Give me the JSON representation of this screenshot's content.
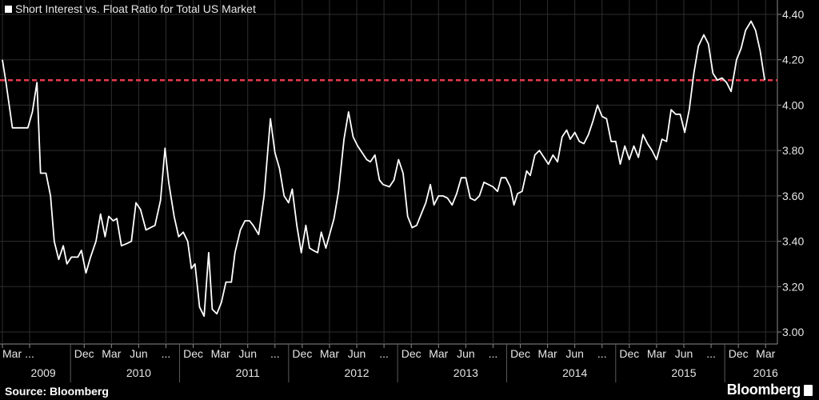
{
  "legend": {
    "label": "Short Interest vs. Float Ratio for Total US Market"
  },
  "source": "Source: Bloomberg",
  "brand": "Bloomberg",
  "chart_data": {
    "type": "line",
    "title": "",
    "xlabel": "",
    "ylabel": "",
    "ylim": [
      3.0,
      4.4
    ],
    "yticks": [
      "3.00",
      "3.20",
      "3.40",
      "3.60",
      "3.80",
      "4.00",
      "4.20",
      "4.40"
    ],
    "grid": true,
    "y_axis_side": "right",
    "reference_line": {
      "value": 4.11,
      "color": "#e8394d",
      "style": "dashed"
    },
    "x_month_labels": [
      {
        "t": 0,
        "label": "Mar"
      },
      {
        "t": 3,
        "label": "..."
      },
      {
        "t": 9,
        "label": "Dec"
      },
      {
        "t": 12,
        "label": "Mar"
      },
      {
        "t": 15,
        "label": "Jun"
      },
      {
        "t": 18,
        "label": "..."
      },
      {
        "t": 21,
        "label": "Dec"
      },
      {
        "t": 24,
        "label": "Mar"
      },
      {
        "t": 27,
        "label": "Jun"
      },
      {
        "t": 30,
        "label": "..."
      },
      {
        "t": 33,
        "label": "Dec"
      },
      {
        "t": 36,
        "label": "Mar"
      },
      {
        "t": 39,
        "label": "Jun"
      },
      {
        "t": 42,
        "label": "..."
      },
      {
        "t": 45,
        "label": "Dec"
      },
      {
        "t": 48,
        "label": "Mar"
      },
      {
        "t": 51,
        "label": "Jun"
      },
      {
        "t": 54,
        "label": "..."
      },
      {
        "t": 57,
        "label": "Dec"
      },
      {
        "t": 60,
        "label": "Mar"
      },
      {
        "t": 63,
        "label": "Jun"
      },
      {
        "t": 66,
        "label": "..."
      },
      {
        "t": 69,
        "label": "Dec"
      },
      {
        "t": 72,
        "label": "Mar"
      },
      {
        "t": 75,
        "label": "Jun"
      },
      {
        "t": 78,
        "label": "..."
      },
      {
        "t": 81,
        "label": "Dec"
      },
      {
        "t": 84,
        "label": "Mar"
      }
    ],
    "x_year_labels": [
      {
        "t": 4.5,
        "label": "2009"
      },
      {
        "t": 15,
        "label": "2010"
      },
      {
        "t": 27,
        "label": "2011"
      },
      {
        "t": 39,
        "label": "2012"
      },
      {
        "t": 51,
        "label": "2013"
      },
      {
        "t": 63,
        "label": "2014"
      },
      {
        "t": 75,
        "label": "2015"
      },
      {
        "t": 84,
        "label": "2016"
      }
    ],
    "series": [
      {
        "color": "#ffffff",
        "points": [
          [
            0.0,
            4.2
          ],
          [
            0.4,
            4.1
          ],
          [
            1.1,
            3.9
          ],
          [
            2.8,
            3.9
          ],
          [
            3.3,
            3.97
          ],
          [
            3.8,
            4.1
          ],
          [
            4.2,
            3.7
          ],
          [
            4.8,
            3.7
          ],
          [
            5.3,
            3.6
          ],
          [
            5.7,
            3.4
          ],
          [
            6.2,
            3.32
          ],
          [
            6.7,
            3.38
          ],
          [
            7.1,
            3.3
          ],
          [
            7.6,
            3.33
          ],
          [
            8.3,
            3.33
          ],
          [
            8.7,
            3.36
          ],
          [
            9.2,
            3.26
          ],
          [
            9.7,
            3.33
          ],
          [
            10.3,
            3.4
          ],
          [
            10.8,
            3.52
          ],
          [
            11.3,
            3.42
          ],
          [
            11.7,
            3.51
          ],
          [
            12.2,
            3.49
          ],
          [
            12.6,
            3.5
          ],
          [
            13.1,
            3.38
          ],
          [
            13.7,
            3.39
          ],
          [
            14.2,
            3.4
          ],
          [
            14.7,
            3.57
          ],
          [
            15.2,
            3.54
          ],
          [
            15.8,
            3.45
          ],
          [
            16.8,
            3.47
          ],
          [
            17.4,
            3.58
          ],
          [
            17.9,
            3.81
          ],
          [
            18.3,
            3.66
          ],
          [
            18.9,
            3.51
          ],
          [
            19.4,
            3.42
          ],
          [
            19.9,
            3.44
          ],
          [
            20.4,
            3.4
          ],
          [
            20.8,
            3.28
          ],
          [
            21.2,
            3.3
          ],
          [
            21.7,
            3.11
          ],
          [
            22.2,
            3.07
          ],
          [
            22.7,
            3.35
          ],
          [
            23.1,
            3.1
          ],
          [
            23.6,
            3.08
          ],
          [
            24.1,
            3.13
          ],
          [
            24.6,
            3.22
          ],
          [
            25.2,
            3.22
          ],
          [
            25.6,
            3.35
          ],
          [
            26.2,
            3.45
          ],
          [
            26.7,
            3.49
          ],
          [
            27.2,
            3.49
          ],
          [
            27.6,
            3.47
          ],
          [
            28.2,
            3.43
          ],
          [
            28.8,
            3.6
          ],
          [
            29.5,
            3.94
          ],
          [
            30.0,
            3.79
          ],
          [
            30.5,
            3.72
          ],
          [
            31.0,
            3.6
          ],
          [
            31.5,
            3.57
          ],
          [
            31.9,
            3.63
          ],
          [
            32.4,
            3.47
          ],
          [
            32.9,
            3.35
          ],
          [
            33.4,
            3.47
          ],
          [
            33.8,
            3.37
          ],
          [
            34.2,
            3.36
          ],
          [
            34.7,
            3.35
          ],
          [
            35.1,
            3.44
          ],
          [
            35.6,
            3.37
          ],
          [
            36.5,
            3.5
          ],
          [
            37.0,
            3.62
          ],
          [
            37.6,
            3.85
          ],
          [
            38.1,
            3.97
          ],
          [
            38.6,
            3.86
          ],
          [
            39.1,
            3.82
          ],
          [
            39.6,
            3.79
          ],
          [
            40.1,
            3.76
          ],
          [
            40.5,
            3.75
          ],
          [
            41.0,
            3.78
          ],
          [
            41.5,
            3.67
          ],
          [
            41.9,
            3.65
          ],
          [
            42.6,
            3.64
          ],
          [
            43.1,
            3.67
          ],
          [
            43.6,
            3.76
          ],
          [
            44.1,
            3.7
          ],
          [
            44.6,
            3.51
          ],
          [
            45.1,
            3.46
          ],
          [
            45.6,
            3.47
          ],
          [
            46.1,
            3.52
          ],
          [
            46.6,
            3.57
          ],
          [
            47.1,
            3.65
          ],
          [
            47.5,
            3.56
          ],
          [
            48.0,
            3.6
          ],
          [
            48.5,
            3.6
          ],
          [
            49.0,
            3.59
          ],
          [
            49.5,
            3.56
          ],
          [
            50.0,
            3.61
          ],
          [
            50.5,
            3.68
          ],
          [
            51.0,
            3.68
          ],
          [
            51.5,
            3.59
          ],
          [
            52.0,
            3.58
          ],
          [
            52.5,
            3.6
          ],
          [
            53.0,
            3.66
          ],
          [
            53.5,
            3.65
          ],
          [
            54.0,
            3.64
          ],
          [
            54.5,
            3.62
          ],
          [
            54.9,
            3.68
          ],
          [
            55.4,
            3.68
          ],
          [
            55.9,
            3.64
          ],
          [
            56.3,
            3.56
          ],
          [
            56.7,
            3.61
          ],
          [
            57.2,
            3.62
          ],
          [
            57.7,
            3.71
          ],
          [
            58.1,
            3.69
          ],
          [
            58.6,
            3.78
          ],
          [
            59.1,
            3.8
          ],
          [
            59.6,
            3.77
          ],
          [
            60.1,
            3.74
          ],
          [
            60.6,
            3.78
          ],
          [
            61.1,
            3.75
          ],
          [
            61.6,
            3.86
          ],
          [
            62.1,
            3.89
          ],
          [
            62.5,
            3.85
          ],
          [
            63.0,
            3.88
          ],
          [
            63.5,
            3.84
          ],
          [
            64.0,
            3.83
          ],
          [
            64.5,
            3.87
          ],
          [
            65.0,
            3.93
          ],
          [
            65.5,
            4.0
          ],
          [
            66.0,
            3.95
          ],
          [
            66.5,
            3.94
          ],
          [
            67.0,
            3.84
          ],
          [
            67.5,
            3.84
          ],
          [
            68.0,
            3.74
          ],
          [
            68.5,
            3.82
          ],
          [
            69.0,
            3.76
          ],
          [
            69.5,
            3.82
          ],
          [
            70.0,
            3.77
          ],
          [
            70.5,
            3.87
          ],
          [
            71.0,
            3.83
          ],
          [
            71.5,
            3.8
          ],
          [
            72.0,
            3.76
          ],
          [
            72.6,
            3.85
          ],
          [
            73.1,
            3.84
          ],
          [
            73.6,
            3.98
          ],
          [
            74.1,
            3.96
          ],
          [
            74.6,
            3.96
          ],
          [
            75.1,
            3.88
          ],
          [
            75.6,
            3.98
          ],
          [
            76.1,
            4.14
          ],
          [
            76.6,
            4.26
          ],
          [
            77.2,
            4.31
          ],
          [
            77.7,
            4.27
          ],
          [
            78.2,
            4.14
          ],
          [
            78.7,
            4.11
          ],
          [
            79.2,
            4.12
          ],
          [
            79.7,
            4.1
          ],
          [
            80.2,
            4.06
          ],
          [
            80.8,
            4.2
          ],
          [
            81.3,
            4.25
          ],
          [
            81.8,
            4.33
          ],
          [
            82.4,
            4.37
          ],
          [
            82.9,
            4.33
          ],
          [
            83.4,
            4.24
          ],
          [
            83.9,
            4.11
          ]
        ]
      }
    ]
  }
}
